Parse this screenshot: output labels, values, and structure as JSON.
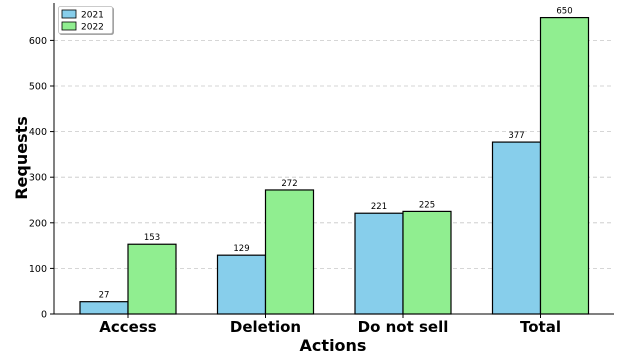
{
  "chart_data": {
    "type": "bar",
    "title": "",
    "xlabel": "Actions",
    "ylabel": "Requests",
    "categories": [
      "Access",
      "Deletion",
      "Do not sell",
      "Total"
    ],
    "series": [
      {
        "name": "2021",
        "values": [
          27,
          129,
          221,
          377
        ],
        "color": "#87CEEB"
      },
      {
        "name": "2022",
        "values": [
          153,
          272,
          225,
          650
        ],
        "color": "#90EE90"
      }
    ],
    "ylim": [
      0,
      682
    ],
    "yticks": [
      0,
      100,
      200,
      300,
      400,
      500,
      600
    ],
    "ytick_labels": [
      "0",
      "100",
      "200",
      "300",
      "400",
      "500",
      "600"
    ],
    "grid": "horizontal dashed",
    "legend_position": "top-left",
    "data_labels": true
  }
}
